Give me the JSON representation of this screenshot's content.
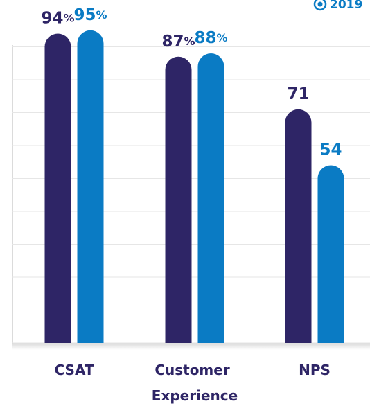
{
  "chart_data": {
    "type": "bar",
    "categories": [
      "CSAT",
      "Customer Experience",
      "NPS"
    ],
    "series": [
      {
        "color": "#2e2566",
        "values": [
          94,
          87,
          71
        ],
        "value_labels": [
          "94%",
          "87%",
          "71"
        ]
      },
      {
        "name": "2019",
        "color": "#0a7bc4",
        "values": [
          95,
          88,
          54
        ],
        "value_labels": [
          "95%",
          "88%",
          "54"
        ]
      }
    ],
    "ylim": [
      0,
      100
    ],
    "yticks": [
      0,
      10,
      20,
      30,
      40,
      50,
      60,
      70,
      80,
      90
    ],
    "grid": true
  }
}
